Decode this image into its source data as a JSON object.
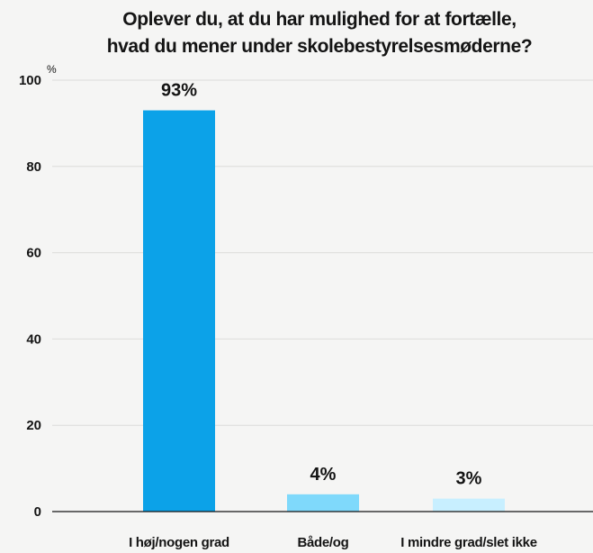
{
  "chart_data": {
    "type": "bar",
    "title_lines": [
      "Oplever du, at du har mulighed for at fortælle,",
      "hvad du mener under skolebestyrelsesmøderne?"
    ],
    "categories": [
      "I høj/nogen grad",
      "Både/og",
      "I mindre grad/slet ikke"
    ],
    "values": [
      93,
      4,
      3
    ],
    "value_labels": [
      "93%",
      "4%",
      "3%"
    ],
    "bar_colors": [
      "#0ca2e8",
      "#7fd9fb",
      "#c8efff"
    ],
    "y_unit": "%",
    "y_ticks": [
      0,
      20,
      40,
      60,
      80,
      100
    ],
    "y_tick_labels": [
      "0",
      "20",
      "40",
      "60",
      "80",
      "100"
    ],
    "ylim": [
      0,
      100
    ],
    "grid": true,
    "legend": "none"
  }
}
